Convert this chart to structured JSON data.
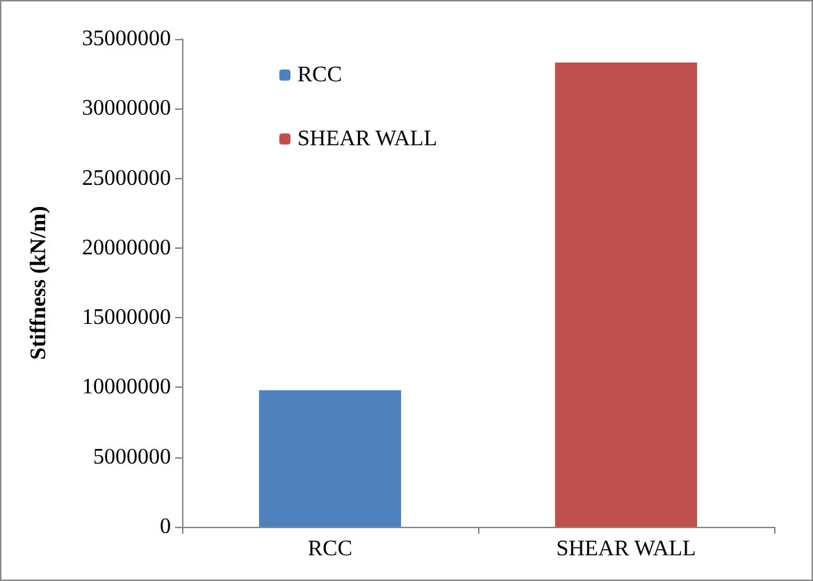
{
  "chart_data": {
    "type": "bar",
    "ylabel": "Stiffness (kN/m)",
    "categories": [
      "RCC",
      "SHEAR WALL"
    ],
    "series": [
      {
        "name": "RCC",
        "color": "#4f81bd",
        "values": [
          9800000,
          null
        ]
      },
      {
        "name": "SHEAR WALL",
        "color": "#c0504d",
        "values": [
          null,
          33300000
        ]
      }
    ],
    "ylim": [
      0,
      35000000
    ],
    "yticks": [
      0,
      5000000,
      10000000,
      15000000,
      20000000,
      25000000,
      30000000,
      35000000
    ],
    "grid": false,
    "legend": "top left"
  }
}
